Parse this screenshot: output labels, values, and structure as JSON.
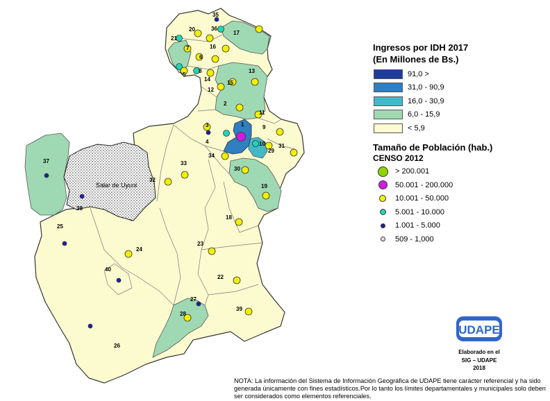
{
  "legend": {
    "idh_title": "Ingresos por IDH 2017",
    "idh_subtitle": "(En Millones de Bs.)",
    "idh_classes": [
      {
        "label": "91,0 >",
        "color": "#1f3b9c"
      },
      {
        "label": "31,0 - 90,9",
        "color": "#2f7fc1"
      },
      {
        "label": "16,0 - 30,9",
        "color": "#43b9c8"
      },
      {
        "label": "6,0 - 15,9",
        "color": "#9fd9b3"
      },
      {
        "label": "< 5,9",
        "color": "#fcfbd0"
      }
    ],
    "pop_title": "Tamaño de Población (hab.)",
    "pop_subtitle": "CENSO 2012",
    "pop_classes": [
      {
        "label": "> 200.001",
        "color": "#8fd400"
      },
      {
        "label": "50.001 - 200.000",
        "color": "#d21be0"
      },
      {
        "label": "10.001 - 50.000",
        "color": "#f3ef00"
      },
      {
        "label": "5.001 - 10.000",
        "color": "#21d6b8"
      },
      {
        "label": "1.001 - 5.000",
        "color": "#1e1ea8"
      },
      {
        "label": "509  - 1,000",
        "color": "#ffd8e8"
      }
    ]
  },
  "map": {
    "salar_label": "Salar de Uyuni",
    "municipalities": [
      {
        "num": "1"
      },
      {
        "num": "2"
      },
      {
        "num": "3"
      },
      {
        "num": "4"
      },
      {
        "num": "5"
      },
      {
        "num": "6"
      },
      {
        "num": "7"
      },
      {
        "num": "8"
      },
      {
        "num": "9"
      },
      {
        "num": "10"
      },
      {
        "num": "11"
      },
      {
        "num": "12"
      },
      {
        "num": "13"
      },
      {
        "num": "14"
      },
      {
        "num": "15"
      },
      {
        "num": "16"
      },
      {
        "num": "17"
      },
      {
        "num": "18"
      },
      {
        "num": "19"
      },
      {
        "num": "20"
      },
      {
        "num": "21"
      },
      {
        "num": "22"
      },
      {
        "num": "23"
      },
      {
        "num": "24"
      },
      {
        "num": "25"
      },
      {
        "num": "26"
      },
      {
        "num": "27"
      },
      {
        "num": "28"
      },
      {
        "num": "29"
      },
      {
        "num": "30"
      },
      {
        "num": "31"
      },
      {
        "num": "32"
      },
      {
        "num": "33"
      },
      {
        "num": "34"
      },
      {
        "num": "35"
      },
      {
        "num": "36"
      },
      {
        "num": "37"
      },
      {
        "num": "38"
      },
      {
        "num": "39"
      },
      {
        "num": "40"
      }
    ]
  },
  "logo": {
    "name": "UDAPE",
    "line1": "Elaborado en el",
    "line2": "SIG – UDAPE",
    "line3": "2018"
  },
  "note": "NOTA: La información del Sistema de Información Geográfica de UDAPE tiene carácter referencial y ha sido generada únicamente con fines estadísticos.Por lo tanto los límites departamentales y municipales solo deben ser considerados como elementos referenciales."
}
